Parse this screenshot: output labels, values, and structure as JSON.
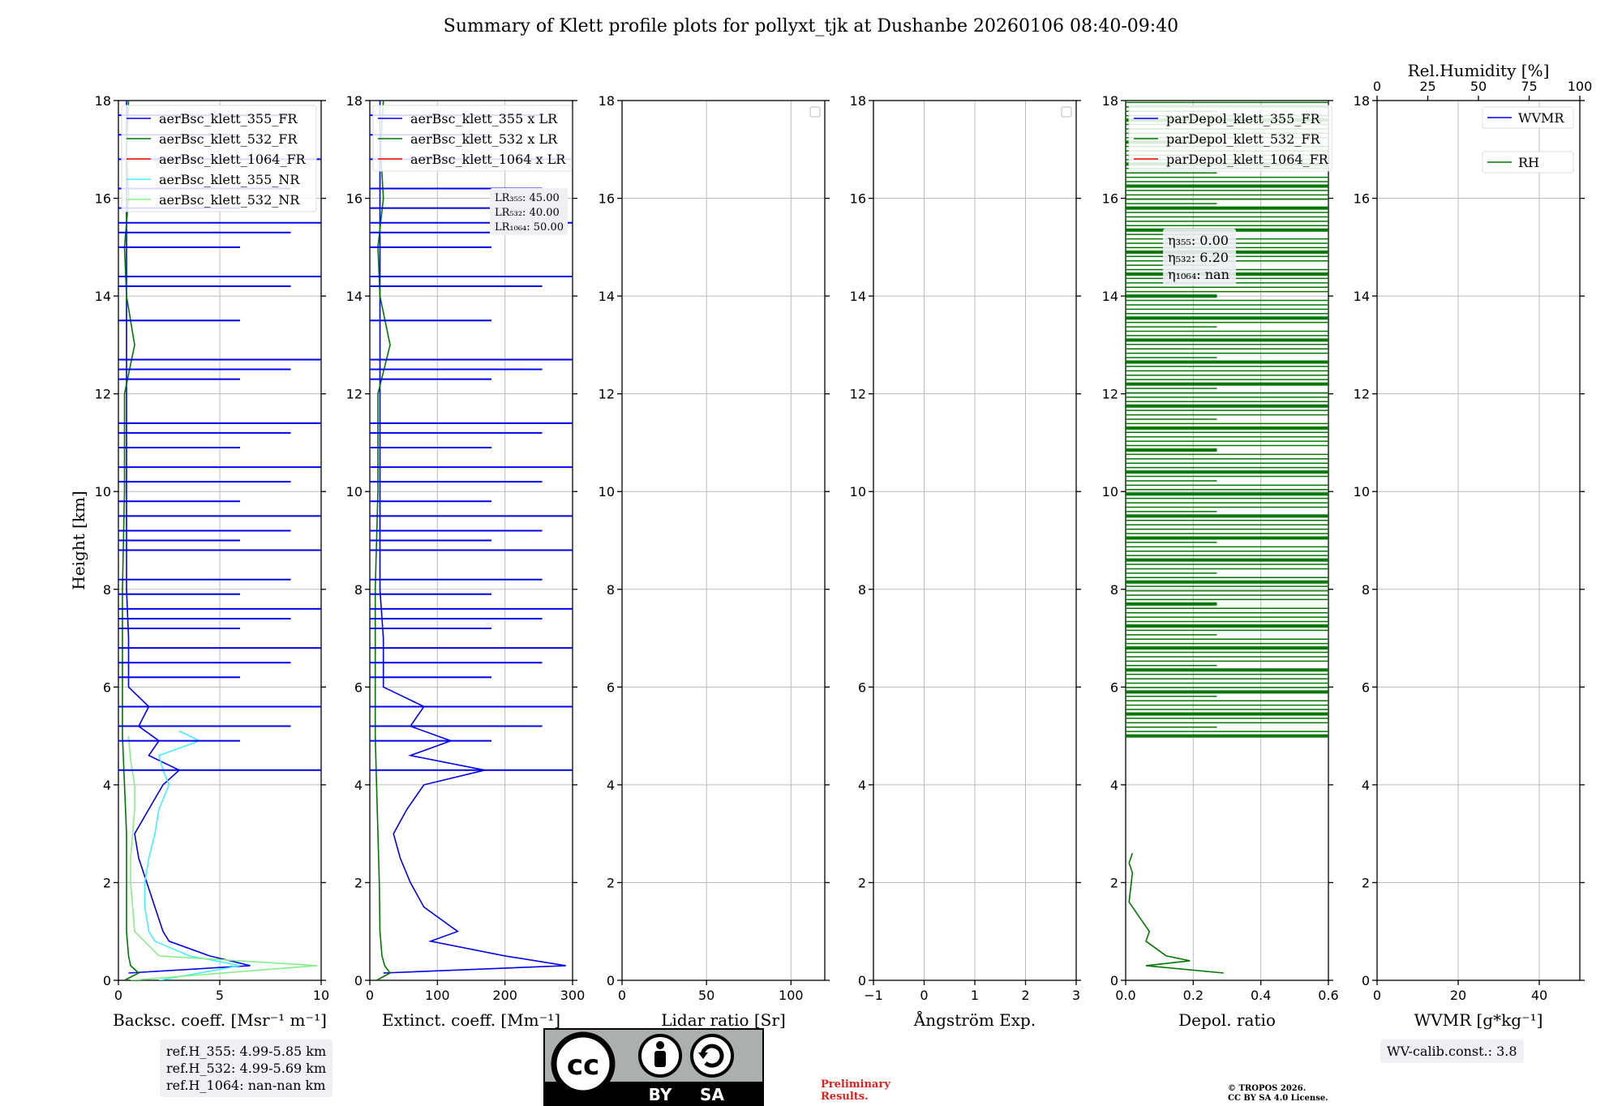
{
  "title": "Summary of Klett profile plots for pollyxt_tjk at Dushanbe 20260106 08:40-09:40",
  "colors": {
    "c355": "#0000ee",
    "c532": "#007700",
    "c1064": "#ee0000",
    "c355nr": "#44eeff",
    "c532nr": "#88ee88",
    "grid": "#bbbbbb"
  },
  "chart_data": [
    {
      "type": "line",
      "xlabel": "Backsc. coeff. [Msr⁻¹ m⁻¹]",
      "ylabel": "Height [km]",
      "xlim": [
        0,
        10
      ],
      "ylim": [
        0,
        18
      ],
      "xticks": [
        0,
        5,
        10
      ],
      "yticks": [
        0,
        2,
        4,
        6,
        8,
        10,
        12,
        14,
        16,
        18
      ],
      "grid": true,
      "legend": "top-left",
      "series": [
        {
          "name": "aerBsc_klett_355_FR",
          "color": "#0000ee"
        },
        {
          "name": "aerBsc_klett_532_FR",
          "color": "#007700"
        },
        {
          "name": "aerBsc_klett_1064_FR",
          "color": "#ee0000"
        },
        {
          "name": "aerBsc_klett_355_NR",
          "color": "#44eeff"
        },
        {
          "name": "aerBsc_klett_532_NR",
          "color": "#88ee88"
        }
      ],
      "profiles": {
        "aerBsc_klett_355_FR": {
          "h": [
            0.15,
            0.3,
            0.5,
            0.8,
            1.0,
            1.5,
            2.0,
            2.5,
            3.0,
            3.5,
            4.0,
            4.3,
            4.6,
            4.9,
            5.2,
            5.6,
            6.0,
            7.0,
            8.0,
            9.0,
            10.0,
            11.0,
            12.0,
            13.0,
            14.0,
            15.0,
            16.0,
            17.0,
            18.0
          ],
          "v": [
            0.5,
            6.5,
            4.5,
            2.5,
            2.2,
            1.8,
            1.4,
            1.0,
            0.8,
            1.5,
            2.2,
            3.0,
            1.5,
            2.0,
            1.0,
            1.5,
            0.5,
            0.5,
            0.4,
            0.4,
            0.4,
            0.4,
            0.4,
            0.4,
            0.4,
            0.4,
            0.4,
            0.4,
            0.4
          ]
        },
        "aerBsc_klett_532_FR": {
          "h": [
            0.0,
            0.15,
            0.3,
            0.5,
            1.0,
            1.5,
            2.0,
            3.0,
            4.0,
            5.0,
            6.0,
            8.0,
            10.0,
            12.0,
            13.0,
            14.0,
            15.0,
            16.0,
            17.0,
            18.0
          ],
          "v": [
            0.3,
            1.0,
            0.6,
            0.5,
            0.4,
            0.4,
            0.4,
            0.4,
            0.3,
            0.2,
            0.2,
            0.2,
            0.3,
            0.3,
            0.8,
            0.4,
            0.3,
            0.5,
            0.4,
            0.5
          ]
        },
        "aerBsc_klett_355_NR": {
          "h": [
            0.0,
            0.3,
            0.5,
            0.8,
            1.0,
            1.5,
            2.0,
            2.5,
            3.0,
            3.5,
            4.0,
            4.3,
            4.6,
            4.9,
            5.1
          ],
          "v": [
            2.0,
            6.0,
            3.5,
            1.8,
            1.5,
            1.3,
            1.3,
            1.5,
            1.8,
            2.0,
            2.5,
            2.2,
            2.0,
            4.0,
            3.0
          ]
        },
        "aerBsc_klett_532_NR": {
          "h": [
            0.0,
            0.3,
            0.5,
            1.0,
            1.5,
            2.0,
            2.5,
            3.0,
            3.5,
            4.0,
            4.5,
            5.0
          ],
          "v": [
            0.6,
            9.8,
            2.0,
            0.8,
            0.7,
            0.6,
            0.6,
            0.7,
            0.8,
            0.8,
            0.6,
            0.5
          ]
        }
      },
      "spikes_355": [
        4.3,
        4.9,
        5.2,
        5.6,
        6.2,
        6.5,
        6.8,
        7.2,
        7.4,
        7.6,
        7.9,
        8.2,
        8.8,
        9.0,
        9.2,
        9.5,
        9.8,
        10.2,
        10.5,
        10.9,
        11.2,
        11.4,
        12.3,
        12.5,
        12.7,
        13.5,
        14.2,
        14.4,
        15.0,
        15.3,
        15.5,
        15.8,
        16.2,
        16.8,
        17.3,
        17.7
      ],
      "annotation": [
        "ref.H_355: 4.99-5.85 km",
        "ref.H_532: 4.99-5.69 km",
        "ref.H_1064: nan-nan km"
      ]
    },
    {
      "type": "line",
      "xlabel": "Extinct. coeff. [Mm⁻¹]",
      "xlim": [
        0,
        300
      ],
      "ylim": [
        0,
        18
      ],
      "xticks": [
        0,
        100,
        200,
        300
      ],
      "yticks": [
        0,
        2,
        4,
        6,
        8,
        10,
        12,
        14,
        16,
        18
      ],
      "grid": true,
      "legend": "top-left",
      "series": [
        {
          "name": "aerBsc_klett_355 x LR",
          "color": "#0000ee"
        },
        {
          "name": "aerBsc_klett_532 x LR",
          "color": "#007700"
        },
        {
          "name": "aerBsc_klett_1064 x LR",
          "color": "#ee0000"
        }
      ],
      "profiles": {
        "aerBsc_klett_355 x LR": {
          "h": [
            0.15,
            0.3,
            0.5,
            0.8,
            1.0,
            1.5,
            2.0,
            2.5,
            3.0,
            3.5,
            4.0,
            4.3,
            4.6,
            4.9,
            5.2,
            5.6,
            6.0,
            7.0,
            8.0,
            10.0,
            12.0,
            14.0,
            16.0,
            18.0
          ],
          "v": [
            20,
            290,
            200,
            90,
            130,
            80,
            60,
            45,
            35,
            55,
            80,
            170,
            60,
            120,
            60,
            80,
            20,
            20,
            15,
            15,
            15,
            15,
            15,
            15
          ]
        },
        "aerBsc_klett_532 x LR": {
          "h": [
            0.0,
            0.15,
            0.3,
            0.5,
            1.0,
            2.0,
            3.0,
            4.0,
            5.0,
            6.0,
            8.0,
            10.0,
            12.0,
            13.0,
            14.0,
            15.0,
            16.0,
            17.0,
            18.0
          ],
          "v": [
            10,
            30,
            22,
            18,
            15,
            14,
            12,
            10,
            8,
            8,
            8,
            12,
            12,
            30,
            15,
            12,
            20,
            16,
            20
          ]
        }
      },
      "spikes_355": [
        4.3,
        4.9,
        5.2,
        5.6,
        6.2,
        6.5,
        6.8,
        7.2,
        7.4,
        7.6,
        7.9,
        8.2,
        8.8,
        9.0,
        9.2,
        9.5,
        9.8,
        10.2,
        10.5,
        10.9,
        11.2,
        11.4,
        12.3,
        12.5,
        12.7,
        13.5,
        14.2,
        14.4,
        15.0,
        15.3,
        15.5,
        15.8,
        16.2,
        16.8,
        17.3,
        17.7
      ],
      "annotation": [
        "LR₃₅₅: 45.00",
        "LR₅₃₂: 40.00",
        "LR₁₀₆₄: 50.00"
      ]
    },
    {
      "type": "line",
      "xlabel": "Lidar ratio [Sr]",
      "xlim": [
        0,
        120
      ],
      "ylim": [
        0,
        18
      ],
      "xticks": [
        0,
        50,
        100
      ],
      "yticks": [
        0,
        2,
        4,
        6,
        8,
        10,
        12,
        14,
        16,
        18
      ],
      "grid": true,
      "legend": "top-right",
      "series": []
    },
    {
      "type": "line",
      "xlabel": "Ångström Exp.",
      "xlim": [
        -1,
        3
      ],
      "ylim": [
        0,
        18
      ],
      "xticks": [
        -1,
        0,
        1,
        2,
        3
      ],
      "yticks": [
        0,
        2,
        4,
        6,
        8,
        10,
        12,
        14,
        16,
        18
      ],
      "grid": true,
      "legend": "top-right",
      "series": []
    },
    {
      "type": "line",
      "xlabel": "Depol. ratio",
      "xlim": [
        0,
        0.6
      ],
      "ylim": [
        0,
        18
      ],
      "xticks": [
        0.0,
        0.2,
        0.4,
        0.6
      ],
      "yticks": [
        0,
        2,
        4,
        6,
        8,
        10,
        12,
        14,
        16,
        18
      ],
      "grid": true,
      "legend": "top-left",
      "series": [
        {
          "name": "parDepol_klett_355_FR",
          "color": "#0000ee"
        },
        {
          "name": "parDepol_klett_532_FR",
          "color": "#007700"
        },
        {
          "name": "parDepol_klett_1064_FR",
          "color": "#ee0000"
        }
      ],
      "profiles": {
        "parDepol_klett_532_FR": {
          "h": [
            0.15,
            0.3,
            0.4,
            0.5,
            0.6,
            0.8,
            1.0,
            1.2,
            1.4,
            1.6,
            2.2,
            2.4,
            2.6
          ],
          "v": [
            0.29,
            0.06,
            0.19,
            0.12,
            0.1,
            0.06,
            0.07,
            0.05,
            0.03,
            0.01,
            0.02,
            0.01,
            0.02
          ]
        }
      },
      "dense_bands_532": {
        "from": 5.0,
        "to": 18.0
      },
      "annotation": [
        "η₃₅₅: 0.00",
        "η₅₃₂: 6.20",
        "η₁₀₆₄: nan"
      ]
    },
    {
      "type": "line",
      "xlabel": "WVMR [g*kg⁻¹]",
      "xlim": [
        0,
        50
      ],
      "ylim": [
        0,
        18
      ],
      "xticks": [
        0,
        20,
        40
      ],
      "yticks": [
        0,
        2,
        4,
        6,
        8,
        10,
        12,
        14,
        16,
        18
      ],
      "x2label": "Rel.Humidity [%]",
      "x2lim": [
        0,
        100
      ],
      "x2ticks": [
        0,
        25,
        50,
        75,
        100
      ],
      "grid": true,
      "legend": "top-right",
      "series": [
        {
          "name": "WVMR",
          "color": "#0000ee"
        },
        {
          "name": "RH",
          "color": "#007700"
        }
      ],
      "annotation": [
        "WV-calib.const.: 3.8"
      ]
    }
  ],
  "footer": {
    "preliminary": [
      "Preliminary",
      "Results."
    ],
    "copyright": [
      "© TROPOS 2026.",
      "CC BY SA 4.0 License."
    ],
    "license_badge": {
      "icon": "cc-by-sa-icon",
      "cc": "cc",
      "by": "BY",
      "sa": "SA"
    }
  }
}
